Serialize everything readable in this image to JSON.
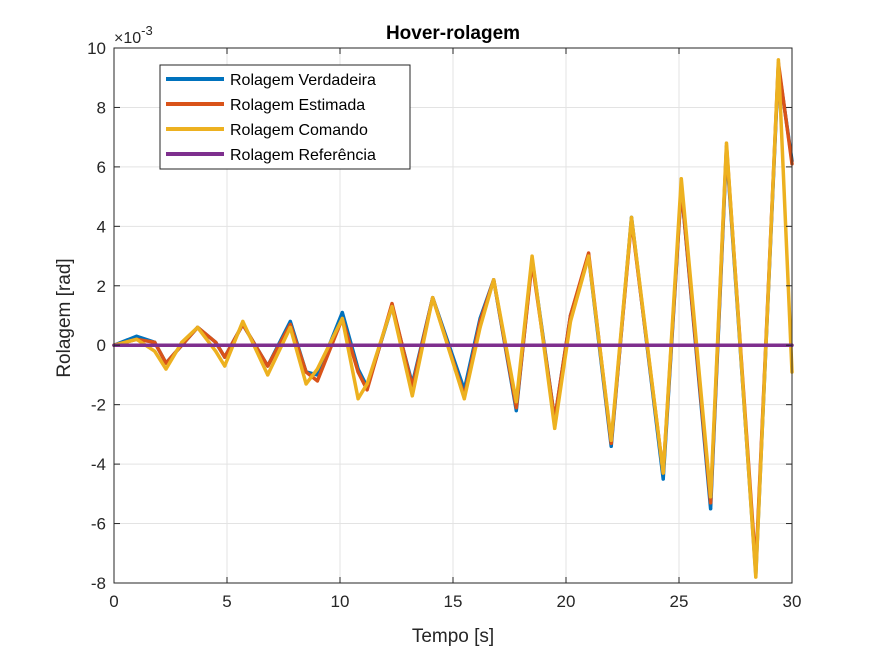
{
  "chart_data": {
    "type": "line",
    "title": "Hover-rolagem",
    "xlabel": "Tempo [s]",
    "ylabel": "Rolagem [rad]",
    "y_multiplier_label": "×10",
    "y_multiplier_exponent": "-3",
    "xlim": [
      0,
      30
    ],
    "ylim": [
      -8,
      10
    ],
    "xticks": [
      "0",
      "5",
      "10",
      "15",
      "20",
      "25",
      "30"
    ],
    "yticks": [
      "-8",
      "-6",
      "-4",
      "-2",
      "0",
      "2",
      "4",
      "6",
      "8",
      "10"
    ],
    "grid": true,
    "legend_position": "top-left",
    "x": [
      0,
      1,
      1.8,
      2.3,
      3,
      3.7,
      4.5,
      4.9,
      5.7,
      6.8,
      7.8,
      8.5,
      9,
      10.1,
      10.8,
      11.2,
      12.3,
      13.2,
      14.1,
      15.5,
      16.2,
      16.8,
      17.8,
      18.5,
      19.5,
      20.2,
      21,
      22,
      22.9,
      24.3,
      25.1,
      26.4,
      27.1,
      28.4,
      29.4,
      30
    ],
    "series": [
      {
        "name": "Rolagem Verdadeira",
        "color": "#0072BD",
        "values": [
          0,
          0.0003,
          0.0001,
          -0.0006,
          0,
          0.0006,
          0.0001,
          -0.0004,
          0.0007,
          -0.0007,
          0.0008,
          -0.0009,
          -0.001,
          0.0011,
          -0.0008,
          -0.0014,
          0.0013,
          -0.0013,
          0.0016,
          -0.0015,
          0.0009,
          0.0022,
          -0.0022,
          0.0029,
          -0.0025,
          0.001,
          0.003,
          -0.0034,
          0.0043,
          -0.0045,
          0.0053,
          -0.0055,
          0.0066,
          -0.0077,
          0.0094,
          0.0062
        ]
      },
      {
        "name": "Rolagem Estimada",
        "color": "#D95319",
        "values": [
          0,
          0.0002,
          0.0001,
          -0.0006,
          0,
          0.0006,
          0.0001,
          -0.0004,
          0.0007,
          -0.0007,
          0.0007,
          -0.0009,
          -0.0012,
          0.0009,
          -0.0009,
          -0.0015,
          0.0014,
          -0.0014,
          0.0016,
          -0.0017,
          0.0008,
          0.0022,
          -0.0021,
          0.0028,
          -0.0025,
          0.001,
          0.0031,
          -0.0033,
          0.0042,
          -0.0043,
          0.0053,
          -0.0053,
          0.0067,
          -0.0075,
          0.0095,
          0.0061
        ]
      },
      {
        "name": "Rolagem Comando",
        "color": "#EDB120",
        "values": [
          0,
          0.0002,
          -0.0002,
          -0.0008,
          0.0001,
          0.0006,
          -0.0002,
          -0.0007,
          0.0008,
          -0.001,
          0.0006,
          -0.0013,
          -0.0008,
          0.0009,
          -0.0018,
          -0.0013,
          0.0013,
          -0.0017,
          0.0016,
          -0.0018,
          0.0006,
          0.0022,
          -0.0019,
          0.003,
          -0.0028,
          0.0008,
          0.003,
          -0.0032,
          0.0043,
          -0.0043,
          0.0056,
          -0.0051,
          0.0068,
          -0.0078,
          0.0096,
          -0.0009
        ]
      },
      {
        "name": "Rolagem Referência",
        "color": "#7E2F8E",
        "values": [
          0,
          0,
          0,
          0,
          0,
          0,
          0,
          0,
          0,
          0,
          0,
          0,
          0,
          0,
          0,
          0,
          0,
          0,
          0,
          0,
          0,
          0,
          0,
          0,
          0,
          0,
          0,
          0,
          0,
          0,
          0,
          0,
          0,
          0,
          0,
          0
        ]
      }
    ]
  }
}
